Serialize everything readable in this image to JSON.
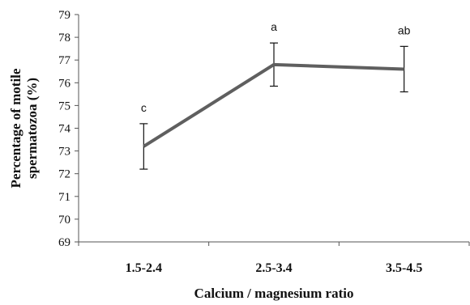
{
  "chart_data": {
    "type": "line",
    "categories": [
      "1.5-2.4",
      "2.5-3.4",
      "3.5-4.5"
    ],
    "series": [
      {
        "values": [
          73.2,
          76.8,
          76.6
        ],
        "error": [
          1.0,
          0.95,
          1.0
        ]
      }
    ],
    "annotations": [
      "c",
      "a",
      "ab"
    ],
    "xlabel": "Calcium / magnesium ratio",
    "ylabel_lines": [
      "Percentage of motile",
      "spermatozoa (%)"
    ],
    "ylim": [
      69,
      79
    ],
    "yticks": [
      69,
      70,
      71,
      72,
      73,
      74,
      75,
      76,
      77,
      78,
      79
    ],
    "grid": false,
    "legend": "none",
    "line_color": "#5f5f5f"
  }
}
